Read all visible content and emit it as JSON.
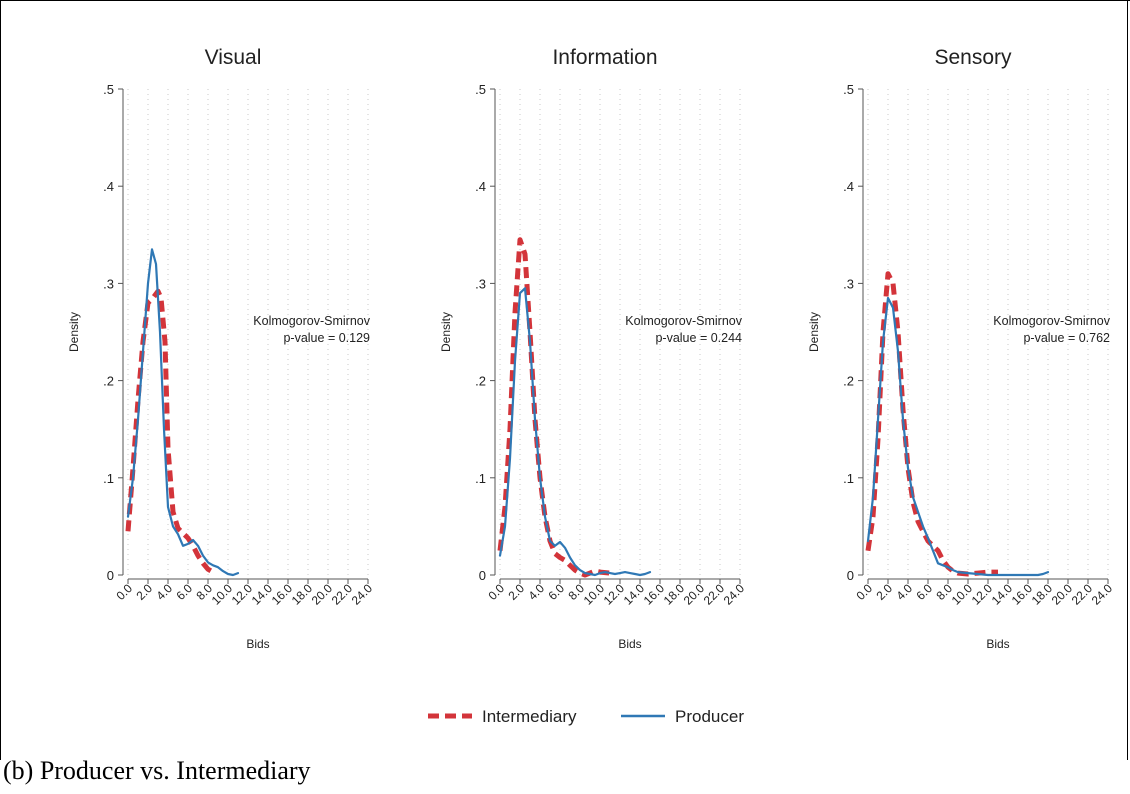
{
  "caption": "(b) Producer vs. Intermediary",
  "colors": {
    "intermediary": "#d3343a",
    "producer": "#2f78b5",
    "grid": "#c8c8c8",
    "axis": "#555555"
  },
  "legend": {
    "placement": "bottom-center",
    "items": [
      "Intermediary",
      "Producer"
    ]
  },
  "chart_data": [
    {
      "type": "line",
      "title": "Visual",
      "xlabel": "Bids",
      "ylabel": "Density",
      "xlim": [
        0,
        24
      ],
      "ylim": [
        0,
        0.5
      ],
      "x_ticks": [
        "0.0",
        "2.0",
        "4.0",
        "6.0",
        "8.0",
        "10.0",
        "12.0",
        "14.0",
        "16.0",
        "18.0",
        "20.0",
        "22.0",
        "24.0"
      ],
      "y_ticks": [
        "0",
        ".1",
        ".2",
        ".3",
        ".4",
        ".5"
      ],
      "grid": true,
      "annotation": [
        "Kolmogorov-Smirnov",
        "p-value = 0.129"
      ],
      "series": [
        {
          "name": "Intermediary",
          "style": "dashed",
          "x": [
            0.0,
            0.5,
            1.0,
            1.5,
            2.0,
            2.5,
            3.0,
            3.3,
            3.7,
            4.0,
            4.5,
            5.0,
            5.5,
            6.0,
            6.5,
            7.0,
            7.5,
            8.0,
            8.5
          ],
          "y": [
            0.045,
            0.11,
            0.18,
            0.24,
            0.28,
            0.285,
            0.292,
            0.285,
            0.24,
            0.13,
            0.065,
            0.048,
            0.043,
            0.038,
            0.03,
            0.02,
            0.012,
            0.006,
            0.003
          ]
        },
        {
          "name": "Producer",
          "style": "solid",
          "x": [
            0.0,
            0.5,
            1.0,
            1.5,
            2.0,
            2.4,
            2.8,
            3.2,
            3.6,
            4.0,
            4.5,
            5.0,
            5.5,
            6.0,
            6.5,
            7.0,
            7.5,
            8.0,
            8.5,
            9.0,
            9.5,
            10.0,
            10.5,
            11.0
          ],
          "y": [
            0.06,
            0.1,
            0.16,
            0.23,
            0.3,
            0.335,
            0.32,
            0.25,
            0.15,
            0.07,
            0.05,
            0.042,
            0.03,
            0.032,
            0.036,
            0.03,
            0.02,
            0.013,
            0.01,
            0.008,
            0.004,
            0.001,
            0.0,
            0.002
          ]
        }
      ]
    },
    {
      "type": "line",
      "title": "Information",
      "xlabel": "Bids",
      "ylabel": "Density",
      "xlim": [
        0,
        24
      ],
      "ylim": [
        0,
        0.5
      ],
      "x_ticks": [
        "0.0",
        "2.0",
        "4.0",
        "6.0",
        "8.0",
        "10.0",
        "12.0",
        "14.0",
        "16.0",
        "18.0",
        "20.0",
        "22.0",
        "24.0"
      ],
      "y_ticks": [
        "0",
        ".1",
        ".2",
        ".3",
        ".4",
        ".5"
      ],
      "grid": true,
      "annotation": [
        "Kolmogorov-Smirnov",
        "p-value = 0.244"
      ],
      "series": [
        {
          "name": "Intermediary",
          "style": "dashed",
          "x": [
            0.0,
            0.5,
            1.0,
            1.5,
            2.0,
            2.5,
            3.0,
            3.5,
            4.0,
            4.5,
            5.0,
            5.5,
            6.0,
            6.5,
            7.0,
            7.5,
            8.0,
            8.5,
            9.0,
            9.5,
            10.0,
            11.0
          ],
          "y": [
            0.025,
            0.07,
            0.15,
            0.27,
            0.345,
            0.33,
            0.25,
            0.16,
            0.1,
            0.06,
            0.035,
            0.022,
            0.018,
            0.015,
            0.01,
            0.005,
            0.002,
            0.0,
            0.002,
            0.004,
            0.003,
            0.002
          ]
        },
        {
          "name": "Producer",
          "style": "solid",
          "x": [
            0.0,
            0.5,
            1.0,
            1.5,
            2.0,
            2.5,
            3.0,
            3.5,
            4.0,
            4.5,
            5.0,
            5.5,
            6.0,
            6.5,
            7.0,
            7.5,
            8.0,
            8.5,
            9.0,
            9.5,
            10.0,
            10.5,
            11.0,
            11.5,
            12.0,
            12.5,
            13.0,
            13.5,
            14.0,
            14.5,
            15.0
          ],
          "y": [
            0.02,
            0.05,
            0.12,
            0.22,
            0.29,
            0.295,
            0.24,
            0.16,
            0.1,
            0.06,
            0.035,
            0.03,
            0.034,
            0.028,
            0.018,
            0.01,
            0.005,
            0.002,
            0.001,
            0.0,
            0.002,
            0.003,
            0.002,
            0.001,
            0.002,
            0.003,
            0.002,
            0.001,
            0.0,
            0.001,
            0.003
          ]
        }
      ]
    },
    {
      "type": "line",
      "title": "Sensory",
      "xlabel": "Bids",
      "ylabel": "Density",
      "xlim": [
        0,
        24
      ],
      "ylim": [
        0,
        0.5
      ],
      "x_ticks": [
        "0.0",
        "2.0",
        "4.0",
        "6.0",
        "8.0",
        "10.0",
        "12.0",
        "14.0",
        "16.0",
        "18.0",
        "20.0",
        "22.0",
        "24.0"
      ],
      "y_ticks": [
        "0",
        ".1",
        ".2",
        ".3",
        ".4",
        ".5"
      ],
      "grid": true,
      "annotation": [
        "Kolmogorov-Smirnov",
        "p-value = 0.762"
      ],
      "series": [
        {
          "name": "Intermediary",
          "style": "dashed",
          "x": [
            0.0,
            0.5,
            1.0,
            1.5,
            2.0,
            2.5,
            3.0,
            3.5,
            4.0,
            4.5,
            5.0,
            5.5,
            6.0,
            6.5,
            7.0,
            7.5,
            8.0,
            8.5,
            9.0,
            10.0,
            11.0,
            12.0,
            13.0
          ],
          "y": [
            0.025,
            0.06,
            0.14,
            0.25,
            0.31,
            0.3,
            0.25,
            0.17,
            0.11,
            0.075,
            0.055,
            0.045,
            0.035,
            0.03,
            0.025,
            0.015,
            0.008,
            0.004,
            0.002,
            0.001,
            0.002,
            0.003,
            0.003
          ]
        },
        {
          "name": "Producer",
          "style": "solid",
          "x": [
            0.0,
            0.5,
            1.0,
            1.5,
            2.0,
            2.5,
            3.0,
            3.5,
            4.0,
            4.5,
            5.0,
            5.5,
            6.0,
            6.5,
            7.0,
            7.5,
            8.0,
            8.5,
            9.0,
            10.0,
            11.0,
            12.0,
            13.0,
            14.0,
            15.0,
            16.0,
            17.0,
            17.5,
            18.0
          ],
          "y": [
            0.035,
            0.08,
            0.16,
            0.24,
            0.285,
            0.275,
            0.23,
            0.16,
            0.11,
            0.08,
            0.065,
            0.05,
            0.038,
            0.025,
            0.012,
            0.01,
            0.008,
            0.005,
            0.003,
            0.002,
            0.001,
            0.0,
            0.0,
            0.0,
            0.0,
            0.0,
            0.0,
            0.001,
            0.003
          ]
        }
      ]
    }
  ]
}
